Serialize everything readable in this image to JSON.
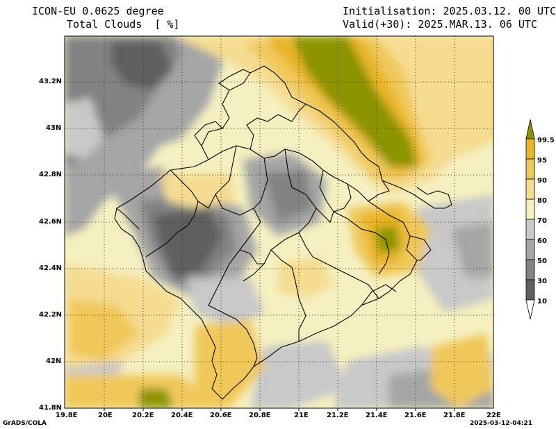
{
  "header": {
    "model": "ICON-EU 0.0625 degree",
    "variable": "Total Clouds  [ %]",
    "init": "Initialisation: 2025.03.12. 00 UTC",
    "valid": "Valid(+30): 2025.MAR.13. 06 UTC"
  },
  "axes": {
    "lon_labels": [
      "19.8E",
      "20E",
      "20.2E",
      "20.4E",
      "20.6E",
      "20.8E",
      "21E",
      "21.2E",
      "21.4E",
      "21.6E",
      "21.8E",
      "22E"
    ],
    "lat_labels": [
      "43.2N",
      "43N",
      "42.8N",
      "42.6N",
      "42.4N",
      "42.2N",
      "42N",
      "41.8N"
    ]
  },
  "colorbar": {
    "labels": [
      "99.5",
      "95",
      "90",
      "80",
      "70",
      "60",
      "50",
      "30",
      "10"
    ],
    "colors": [
      "#8c9400",
      "#e8b428",
      "#f0c85a",
      "#f5dc91",
      "#f5f0c0",
      "#c8c8c8",
      "#a5a5a5",
      "#828282",
      "#5f5f5f",
      "#ffffff"
    ]
  },
  "footer": {
    "left": "GrADS/COLA",
    "right": "2025-03-12-04:21"
  }
}
